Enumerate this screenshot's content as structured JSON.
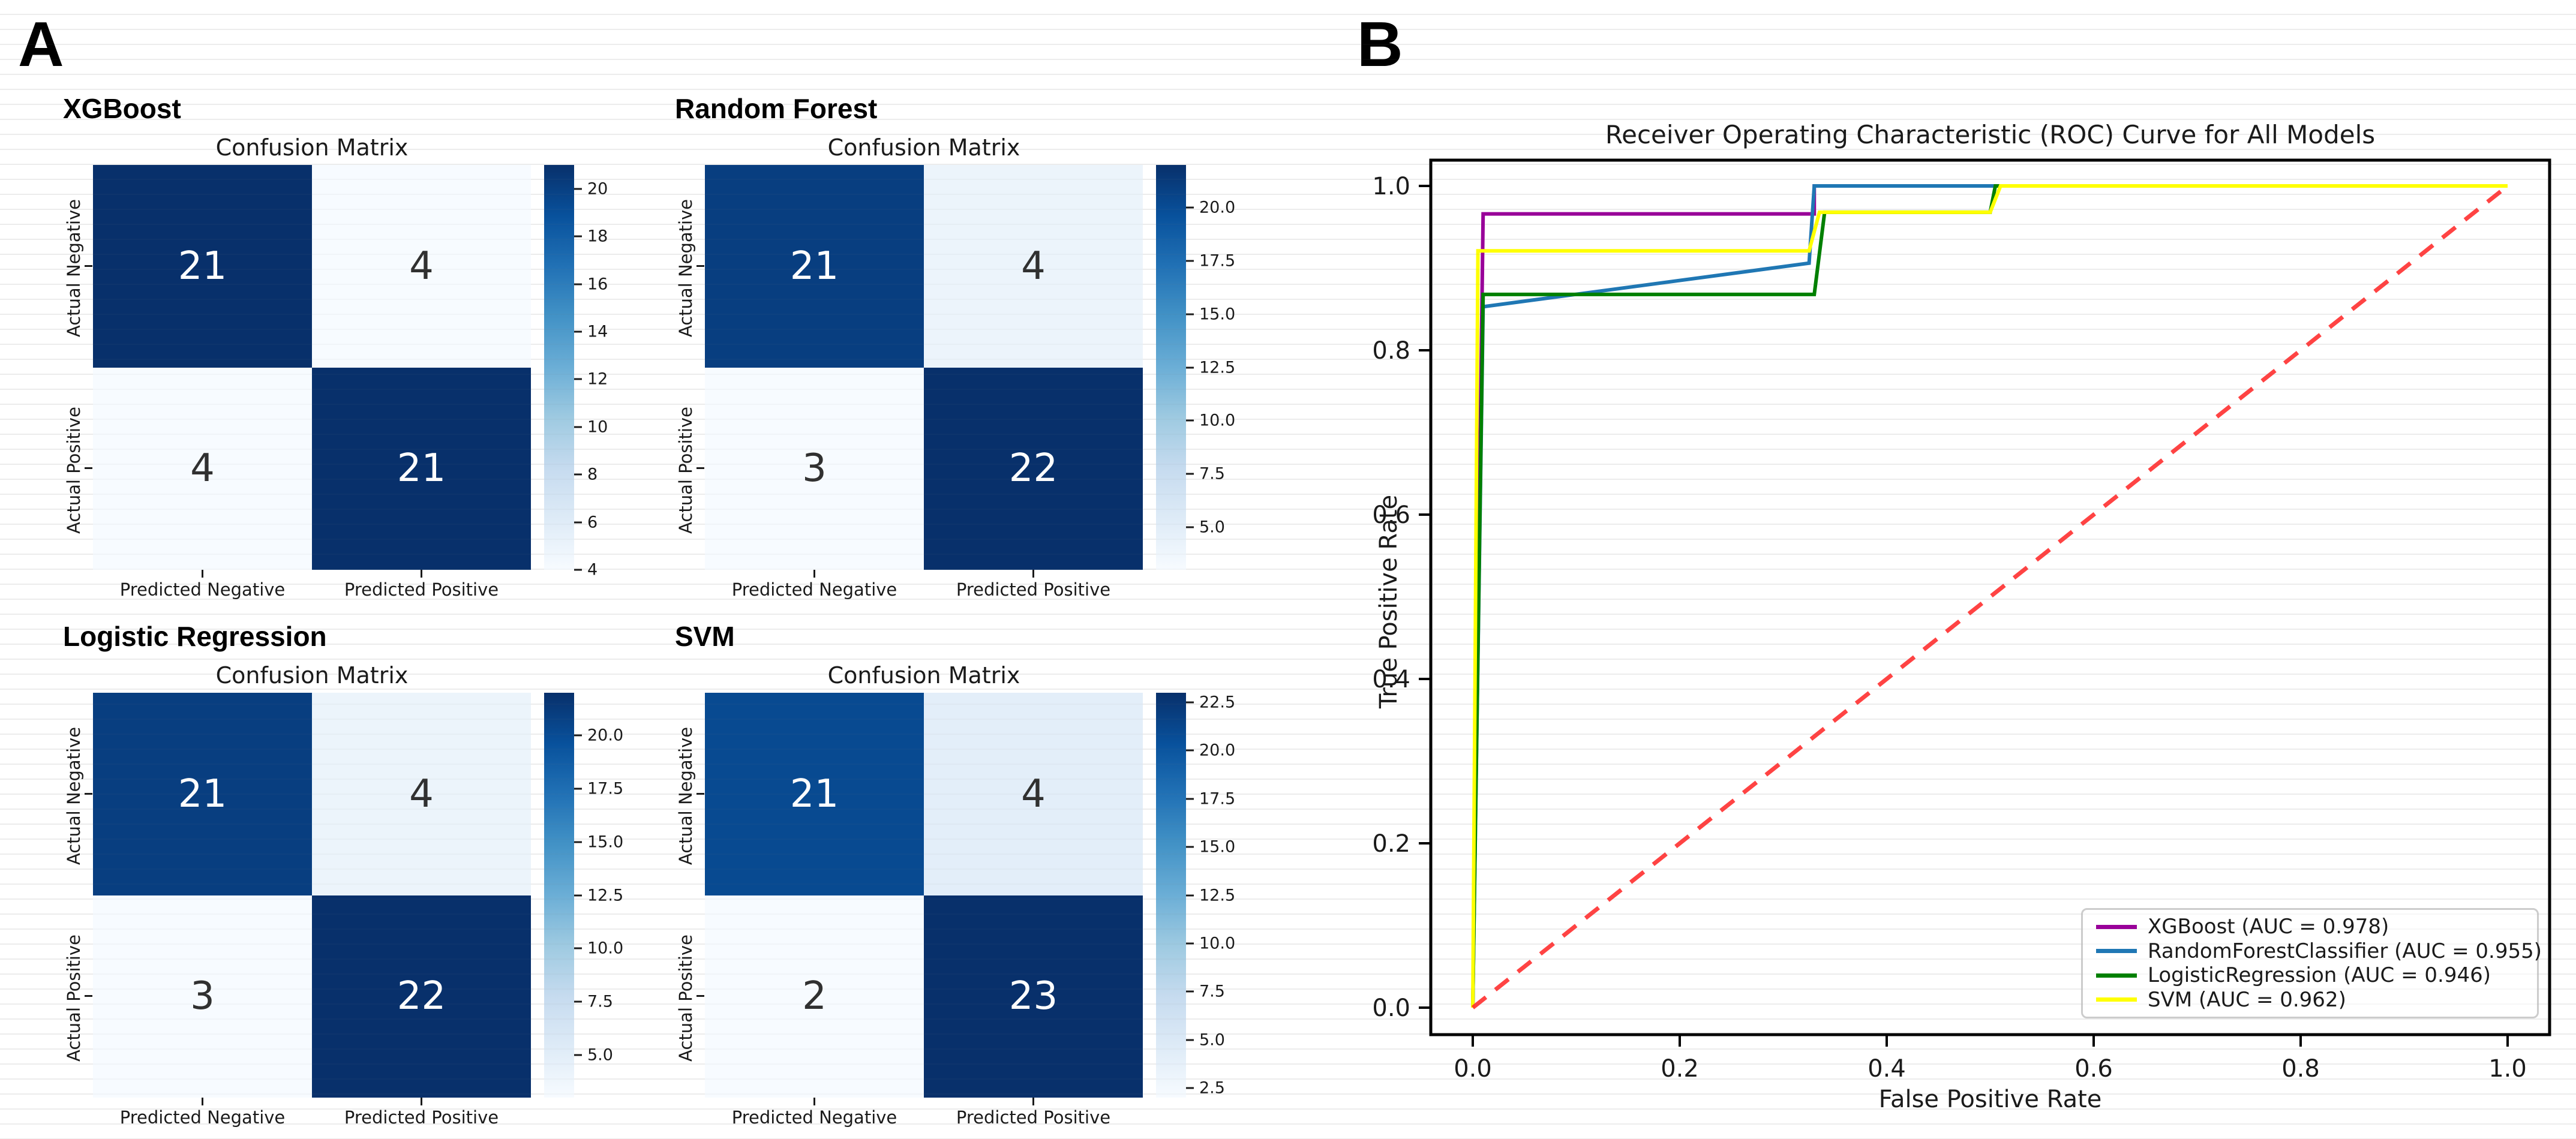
{
  "figure": {
    "panel_a_label": "A",
    "panel_b_label": "B"
  },
  "confusion_matrices": [
    {
      "model": "XGBoost",
      "title": "Confusion Matrix",
      "row_labels": [
        "Actual Negative",
        "Actual Positive"
      ],
      "col_labels": [
        "Predicted Negative",
        "Predicted Positive"
      ],
      "values": [
        [
          21,
          4
        ],
        [
          4,
          21
        ]
      ],
      "cell_colors": [
        [
          "#08306b",
          "#f7fbff"
        ],
        [
          "#f7fbff",
          "#08306b"
        ]
      ],
      "cell_text_colors": [
        [
          "#ffffff",
          "#303030"
        ],
        [
          "#303030",
          "#ffffff"
        ]
      ],
      "colorbar": {
        "vmin": 4,
        "vmax": 21,
        "ticks": [
          {
            "value": 4,
            "label": "4"
          },
          {
            "value": 6,
            "label": "6"
          },
          {
            "value": 8,
            "label": "8"
          },
          {
            "value": 10,
            "label": "10"
          },
          {
            "value": 12,
            "label": "12"
          },
          {
            "value": 14,
            "label": "14"
          },
          {
            "value": 16,
            "label": "16"
          },
          {
            "value": 18,
            "label": "18"
          },
          {
            "value": 20,
            "label": "20"
          }
        ]
      }
    },
    {
      "model": "Random Forest",
      "title": "Confusion Matrix",
      "row_labels": [
        "Actual Negative",
        "Actual Positive"
      ],
      "col_labels": [
        "Predicted Negative",
        "Predicted Positive"
      ],
      "values": [
        [
          21,
          4
        ],
        [
          3,
          22
        ]
      ],
      "cell_colors": [
        [
          "#083e80",
          "#ecf4fb"
        ],
        [
          "#f7fbff",
          "#08306b"
        ]
      ],
      "cell_text_colors": [
        [
          "#ffffff",
          "#303030"
        ],
        [
          "#303030",
          "#ffffff"
        ]
      ],
      "colorbar": {
        "vmin": 3,
        "vmax": 22,
        "ticks": [
          {
            "value": 5,
            "label": "5.0"
          },
          {
            "value": 7.5,
            "label": "7.5"
          },
          {
            "value": 10,
            "label": "10.0"
          },
          {
            "value": 12.5,
            "label": "12.5"
          },
          {
            "value": 15,
            "label": "15.0"
          },
          {
            "value": 17.5,
            "label": "17.5"
          },
          {
            "value": 20,
            "label": "20.0"
          }
        ]
      }
    },
    {
      "model": "Logistic Regression",
      "title": "Confusion Matrix",
      "row_labels": [
        "Actual Negative",
        "Actual Positive"
      ],
      "col_labels": [
        "Predicted Negative",
        "Predicted Positive"
      ],
      "values": [
        [
          21,
          4
        ],
        [
          3,
          22
        ]
      ],
      "cell_colors": [
        [
          "#083e80",
          "#ecf4fb"
        ],
        [
          "#f7fbff",
          "#08306b"
        ]
      ],
      "cell_text_colors": [
        [
          "#ffffff",
          "#303030"
        ],
        [
          "#303030",
          "#ffffff"
        ]
      ],
      "colorbar": {
        "vmin": 3,
        "vmax": 22,
        "ticks": [
          {
            "value": 5,
            "label": "5.0"
          },
          {
            "value": 7.5,
            "label": "7.5"
          },
          {
            "value": 10,
            "label": "10.0"
          },
          {
            "value": 12.5,
            "label": "12.5"
          },
          {
            "value": 15,
            "label": "15.0"
          },
          {
            "value": 17.5,
            "label": "17.5"
          },
          {
            "value": 20,
            "label": "20.0"
          }
        ]
      }
    },
    {
      "model": "SVM",
      "title": "Confusion Matrix",
      "row_labels": [
        "Actual Negative",
        "Actual Positive"
      ],
      "col_labels": [
        "Predicted Negative",
        "Predicted Positive"
      ],
      "values": [
        [
          21,
          4
        ],
        [
          2,
          23
        ]
      ],
      "cell_colors": [
        [
          "#084a91",
          "#e3eef9"
        ],
        [
          "#f7fbff",
          "#08306b"
        ]
      ],
      "cell_text_colors": [
        [
          "#ffffff",
          "#303030"
        ],
        [
          "#303030",
          "#ffffff"
        ]
      ],
      "colorbar": {
        "vmin": 2,
        "vmax": 23,
        "ticks": [
          {
            "value": 2.5,
            "label": "2.5"
          },
          {
            "value": 5,
            "label": "5.0"
          },
          {
            "value": 7.5,
            "label": "7.5"
          },
          {
            "value": 10,
            "label": "10.0"
          },
          {
            "value": 12.5,
            "label": "12.5"
          },
          {
            "value": 15,
            "label": "15.0"
          },
          {
            "value": 17.5,
            "label": "17.5"
          },
          {
            "value": 20,
            "label": "20.0"
          },
          {
            "value": 22.5,
            "label": "22.5"
          }
        ]
      }
    }
  ],
  "chart_data": {
    "type": "line",
    "title": "Receiver Operating Characteristic (ROC) Curve for All Models",
    "xlabel": "False Positive Rate",
    "ylabel": "True Positive Rate",
    "xlim": [
      -0.04,
      1.04
    ],
    "ylim": [
      -0.04,
      1.04
    ],
    "xticks": [
      "0.0",
      "0.2",
      "0.4",
      "0.6",
      "0.8",
      "1.0"
    ],
    "yticks": [
      "0.0",
      "0.2",
      "0.4",
      "0.6",
      "0.8",
      "1.0"
    ],
    "grid": false,
    "legend_position": "lower right",
    "series": [
      {
        "name": "XGBoost",
        "auc": 0.978,
        "label": "XGBoost (AUC = 0.978)",
        "color": "#990099",
        "points": [
          [
            0,
            0
          ],
          [
            0.01,
            0.966
          ],
          [
            0.33,
            0.966
          ],
          [
            0.33,
            1.0
          ],
          [
            1.0,
            1.0
          ]
        ]
      },
      {
        "name": "RandomForestClassifier",
        "auc": 0.955,
        "label": "RandomForestClassifier (AUC = 0.955)",
        "color": "#1f77b4",
        "points": [
          [
            0,
            0
          ],
          [
            0.01,
            0.853
          ],
          [
            0.325,
            0.906
          ],
          [
            0.33,
            1.0
          ],
          [
            1.0,
            1.0
          ]
        ]
      },
      {
        "name": "LogisticRegression",
        "auc": 0.946,
        "label": "LogisticRegression (AUC = 0.946)",
        "color": "#008000",
        "points": [
          [
            0,
            0
          ],
          [
            0.01,
            0.868
          ],
          [
            0.33,
            0.868
          ],
          [
            0.34,
            0.968
          ],
          [
            0.5,
            0.968
          ],
          [
            0.505,
            1.0
          ],
          [
            1.0,
            1.0
          ]
        ]
      },
      {
        "name": "SVM",
        "auc": 0.962,
        "label": "SVM (AUC = 0.962)",
        "color": "#ffff00",
        "points": [
          [
            0,
            0
          ],
          [
            0.005,
            0.921
          ],
          [
            0.325,
            0.921
          ],
          [
            0.335,
            0.968
          ],
          [
            0.5,
            0.968
          ],
          [
            0.51,
            1.0
          ],
          [
            1.0,
            1.0
          ]
        ]
      }
    ],
    "diagonal": {
      "name": "chance-line",
      "color": "#ff2222",
      "dashed": true,
      "points": [
        [
          0,
          0
        ],
        [
          1,
          1
        ]
      ]
    }
  }
}
